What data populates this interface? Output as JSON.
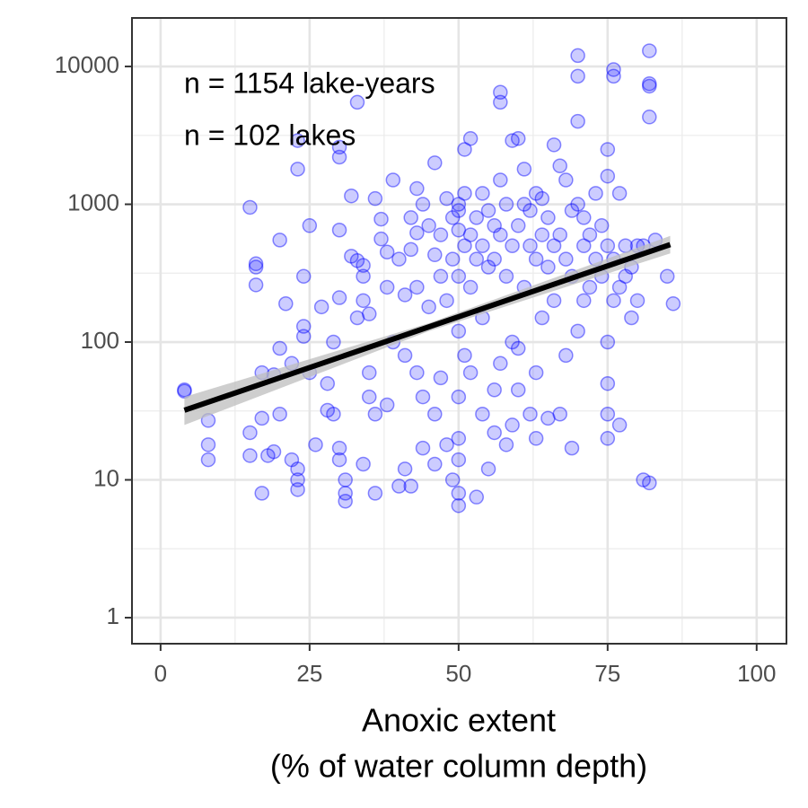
{
  "chart_data": {
    "type": "scatter",
    "annotations": [
      "n = 1154 lake-years",
      "n = 102 lakes"
    ],
    "x_label": [
      "Anoxic extent",
      "(% of water column depth)"
    ],
    "color": "#0000ff",
    "log_y": true,
    "grid": true,
    "xlim": [
      -4.8,
      105
    ],
    "ylim": [
      0.647,
      22500
    ],
    "xticks": [
      0,
      25,
      50,
      75,
      100
    ],
    "yticks": [
      1,
      10,
      100,
      1000,
      10000
    ],
    "x": [
      4,
      4,
      8,
      8,
      8,
      15,
      15,
      15,
      16,
      16,
      16,
      17,
      17,
      17,
      18,
      19,
      19,
      20,
      20,
      20,
      21,
      22,
      22,
      23,
      23,
      23,
      23,
      23,
      24,
      24,
      24,
      25,
      25,
      26,
      27,
      28,
      28,
      29,
      29,
      30,
      30,
      30,
      30,
      30,
      30,
      31,
      31,
      31,
      32,
      32,
      33,
      33,
      33,
      34,
      34,
      34,
      34,
      35,
      35,
      35,
      36,
      36,
      36,
      37,
      37,
      38,
      38,
      38,
      39,
      39,
      40,
      40,
      41,
      41,
      41,
      42,
      42,
      42,
      43,
      43,
      43,
      43,
      44,
      44,
      44,
      45,
      45,
      46,
      46,
      46,
      46,
      47,
      47,
      47,
      48,
      48,
      48,
      49,
      49,
      49,
      50,
      50,
      50,
      50,
      50,
      50,
      50,
      50,
      50,
      50,
      51,
      51,
      51,
      51,
      52,
      52,
      52,
      52,
      53,
      53,
      53,
      54,
      54,
      54,
      54,
      55,
      55,
      55,
      56,
      56,
      56,
      56,
      57,
      57,
      57,
      57,
      57,
      58,
      58,
      58,
      59,
      59,
      59,
      59,
      60,
      60,
      60,
      60,
      61,
      61,
      61,
      62,
      62,
      62,
      63,
      63,
      63,
      63,
      64,
      64,
      64,
      65,
      65,
      65,
      66,
      66,
      66,
      67,
      67,
      67,
      68,
      68,
      68,
      69,
      69,
      69,
      70,
      70,
      70,
      70,
      70,
      71,
      71,
      71,
      72,
      72,
      73,
      73,
      74,
      74,
      75,
      75,
      75,
      75,
      75,
      75,
      75,
      76,
      76,
      76,
      76,
      77,
      77,
      77,
      78,
      78,
      79,
      79,
      80,
      80,
      81,
      81,
      82,
      82,
      82,
      82,
      82,
      83,
      85,
      86
    ],
    "values": [
      45,
      44,
      27,
      18,
      14,
      950,
      22,
      15,
      350,
      370,
      260,
      8,
      60,
      28,
      15,
      58,
      16,
      550,
      90,
      30,
      190,
      70,
      14,
      12,
      10,
      8.5,
      1800,
      2900,
      300,
      130,
      110,
      700,
      60,
      18,
      180,
      50,
      32,
      100,
      30,
      650,
      210,
      2600,
      2200,
      17,
      14,
      10,
      8,
      7,
      1150,
      420,
      5500,
      390,
      150,
      300,
      360,
      200,
      13,
      160,
      60,
      40,
      1100,
      30,
      8,
      780,
      560,
      450,
      250,
      35,
      1500,
      100,
      400,
      9,
      220,
      80,
      12,
      800,
      470,
      9,
      1300,
      620,
      250,
      60,
      1000,
      40,
      17,
      700,
      180,
      2000,
      430,
      30,
      13,
      600,
      300,
      55,
      1100,
      200,
      18,
      800,
      400,
      10,
      1000,
      650,
      900,
      300,
      120,
      40,
      20,
      14,
      8,
      6.5,
      2500,
      1200,
      500,
      80,
      3000,
      600,
      250,
      60,
      800,
      400,
      7.5,
      1200,
      500,
      150,
      30,
      900,
      350,
      12,
      700,
      400,
      45,
      22,
      5500,
      6500,
      1500,
      600,
      70,
      1000,
      300,
      18,
      2900,
      500,
      100,
      25,
      3000,
      700,
      90,
      45,
      1800,
      1000,
      250,
      900,
      500,
      30,
      1200,
      400,
      60,
      20,
      1100,
      600,
      150,
      800,
      350,
      28,
      2700,
      500,
      200,
      1900,
      600,
      30,
      1500,
      400,
      80,
      900,
      300,
      17,
      12000,
      8500,
      4000,
      1000,
      120,
      800,
      500,
      200,
      600,
      250,
      1200,
      400,
      700,
      300,
      2500,
      1600,
      500,
      100,
      50,
      30,
      20,
      9500,
      8500,
      400,
      200,
      1200,
      25,
      250,
      500,
      300,
      350,
      150,
      500,
      200,
      500,
      10,
      13000,
      7500,
      7200,
      4300,
      9.5,
      550,
      300,
      190
    ],
    "trend": {
      "x": [
        4,
        85.5
      ],
      "y": [
        32,
        510
      ],
      "color": "#000000"
    },
    "band": {
      "x": [
        4,
        45,
        85.5
      ],
      "lower": [
        25,
        120,
        440
      ],
      "upper": [
        40,
        137,
        590
      ],
      "color": "#bdbdbd"
    }
  }
}
